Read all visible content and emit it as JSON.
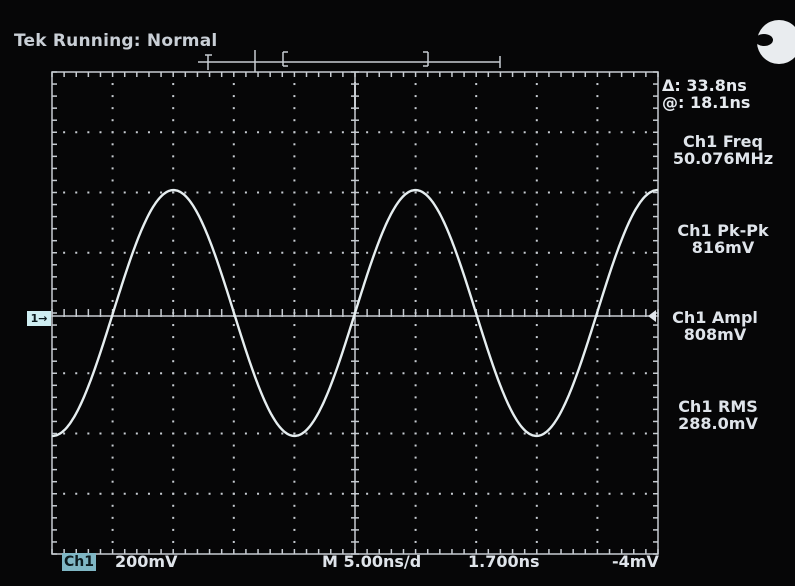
{
  "header": {
    "status": "Tek Running: Normal"
  },
  "cursor_readout": {
    "delta": "Δ: 33.8ns",
    "at": "@: 18.1ns"
  },
  "measurements": [
    {
      "label": "Ch1 Freq",
      "value": "50.076MHz"
    },
    {
      "label": "Ch1 Pk-Pk",
      "value": "816mV"
    },
    {
      "label": "Ch1 Ampl",
      "value": "808mV"
    },
    {
      "label": "Ch1 RMS",
      "value": "288.0mV"
    }
  ],
  "bottom_bar": {
    "channel": "Ch1",
    "volts_per_div": "200mV",
    "timebase": "M 5.00ns/d",
    "position": "1.700ns",
    "trigger_level": "-4mV"
  },
  "channel_marker": "1→",
  "colors": {
    "trace": "#e6eef0",
    "graticule": "#c7ccd2",
    "background": "#060607",
    "text": "#dfe4ea",
    "channel_tag": "#7fb6c4"
  },
  "waveform": {
    "frequency_mhz": 50.076,
    "peak_to_peak_mv": 816,
    "volts_per_div_mv": 200,
    "time_per_div_ns": 5.0
  }
}
